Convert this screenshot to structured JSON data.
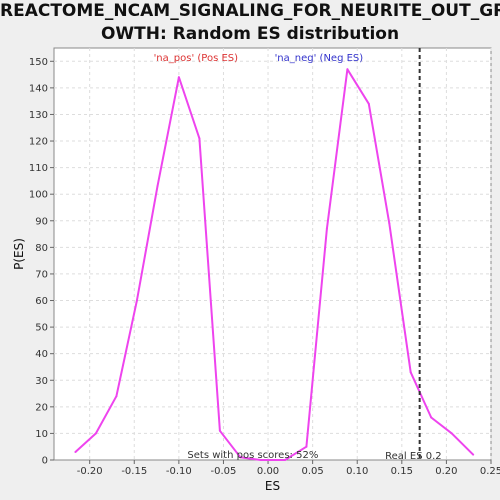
{
  "chart_data": {
    "type": "line",
    "title_line1": "REACTOME_NCAM_SIGNALING_FOR_NEURITE_OUT_GR",
    "title_line2": "OWTH: Random ES distribution",
    "xlabel": "ES",
    "ylabel": "P(ES)",
    "xlim": [
      -0.24,
      0.25
    ],
    "ylim": [
      0,
      155
    ],
    "xticks": [
      -0.2,
      -0.15,
      -0.1,
      -0.05,
      0.0,
      0.05,
      0.1,
      0.15,
      0.2,
      0.25
    ],
    "xtick_labels": [
      "-0.20",
      "-0.15",
      "-0.10",
      "-0.05",
      "0.00",
      "0.05",
      "0.10",
      "0.15",
      "0.20",
      "0.25"
    ],
    "yticks": [
      0,
      10,
      20,
      30,
      40,
      50,
      60,
      70,
      80,
      90,
      100,
      110,
      120,
      130,
      140,
      150
    ],
    "grid": true,
    "series": [
      {
        "color": "#ee44ee",
        "x": [
          -0.216,
          -0.193,
          -0.17,
          -0.147,
          -0.124,
          -0.1,
          -0.077,
          -0.054,
          -0.031,
          -0.008,
          0.019,
          0.043,
          0.066,
          0.089,
          0.113,
          0.136,
          0.16,
          0.183,
          0.206,
          0.23
        ],
        "y": [
          3,
          10,
          24,
          60,
          103,
          144,
          121,
          11,
          1,
          0,
          0,
          5,
          87,
          147,
          134,
          89,
          33,
          16,
          10,
          2
        ]
      }
    ],
    "real_es": 0.17,
    "real_es_label": "Real ES 0.2",
    "pos_label": "'na_pos' (Pos ES)",
    "neg_label": "'na_neg' (Neg ES)",
    "pos_color": "#dd3333",
    "neg_color": "#3333cc",
    "footer_label": "Sets with pos scores: 52%"
  }
}
